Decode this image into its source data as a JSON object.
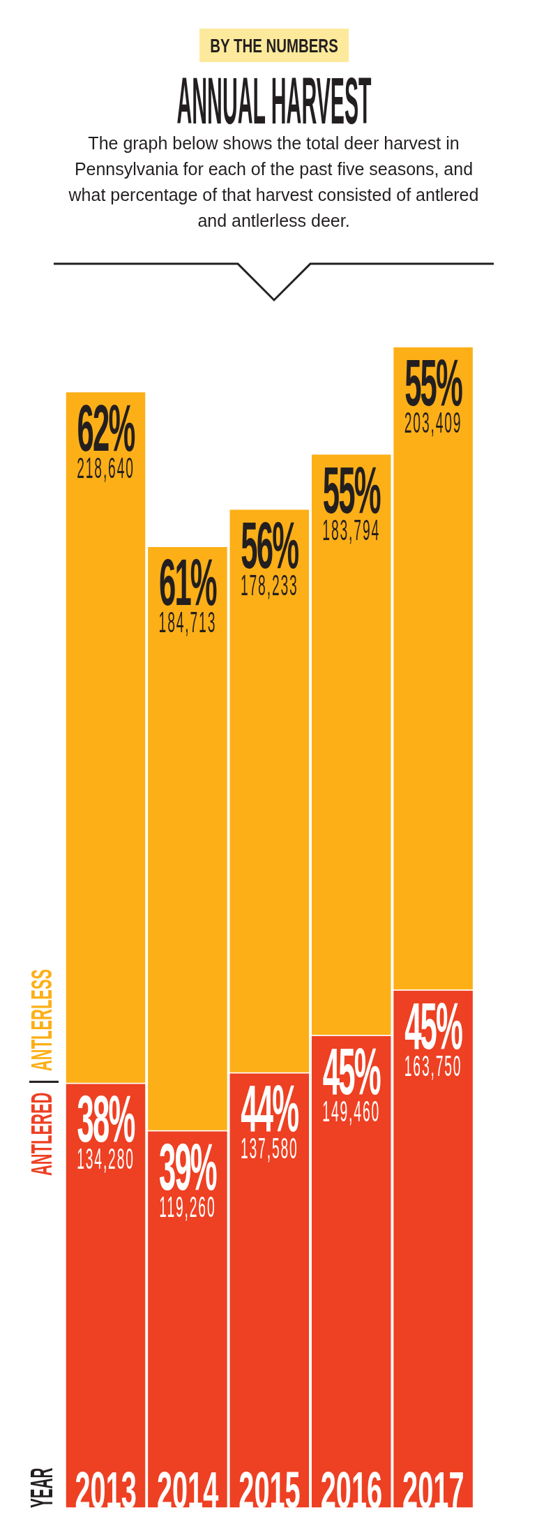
{
  "chart_data": {
    "type": "bar",
    "annotations": [
      "BY THE NUMBERS",
      "YEAR"
    ],
    "title": "ANNUAL HARVEST",
    "subtitle": "The graph below shows the total deer harvest in Pennsylvania for each of the past five seasons, and what percentage of that harvest consisted of antlered and antlerless deer.",
    "categories": [
      "2013",
      "2014",
      "2015",
      "2016",
      "2017"
    ],
    "stacked": true,
    "legend": "left",
    "series": [
      {
        "name": "ANTLERED",
        "color": "#ee4023",
        "values": [
          134280,
          119260,
          137580,
          149460,
          163750
        ],
        "value_labels": [
          "38% 134,280",
          "39% 119,260",
          "44% 137,580",
          "45% 149,460",
          "45% 163,750"
        ]
      },
      {
        "name": "ANTLERLESS",
        "color": "#fcaf17",
        "values": [
          218640,
          184713,
          178233,
          183794,
          203409
        ],
        "value_labels": [
          "62% 218,640",
          "61% 184,713",
          "56% 178,233",
          "55% 183,794",
          "55% 203,409"
        ]
      }
    ]
  }
}
